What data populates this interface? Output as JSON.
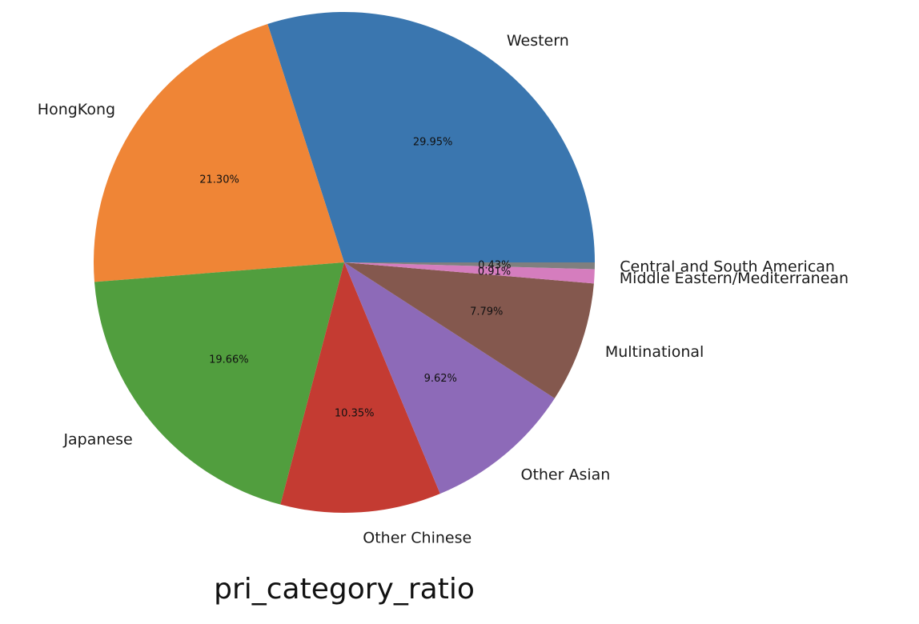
{
  "chart_data": {
    "type": "pie",
    "title": "pri_category_ratio",
    "start_angle_deg": 0,
    "direction": "counterclockwise",
    "slices": [
      {
        "name": "Western",
        "value": 29.95,
        "pct_label": "29.95%",
        "color": "#3a76af"
      },
      {
        "name": "HongKong",
        "value": 21.3,
        "pct_label": "21.30%",
        "color": "#ef8536"
      },
      {
        "name": "Japanese",
        "value": 19.66,
        "pct_label": "19.66%",
        "color": "#519e3e"
      },
      {
        "name": "Other Chinese",
        "value": 10.35,
        "pct_label": "10.35%",
        "color": "#c43b32"
      },
      {
        "name": "Other Asian",
        "value": 9.62,
        "pct_label": "9.62%",
        "color": "#8d6ab8"
      },
      {
        "name": "Multinational",
        "value": 7.79,
        "pct_label": "7.79%",
        "color": "#84584e"
      },
      {
        "name": "Middle Eastern/Mediterranean",
        "value": 0.91,
        "pct_label": "0.91%",
        "color": "#d57dbe"
      },
      {
        "name": "Central and South American",
        "value": 0.43,
        "pct_label": "0.43%",
        "color": "#7f7f7f"
      }
    ]
  }
}
